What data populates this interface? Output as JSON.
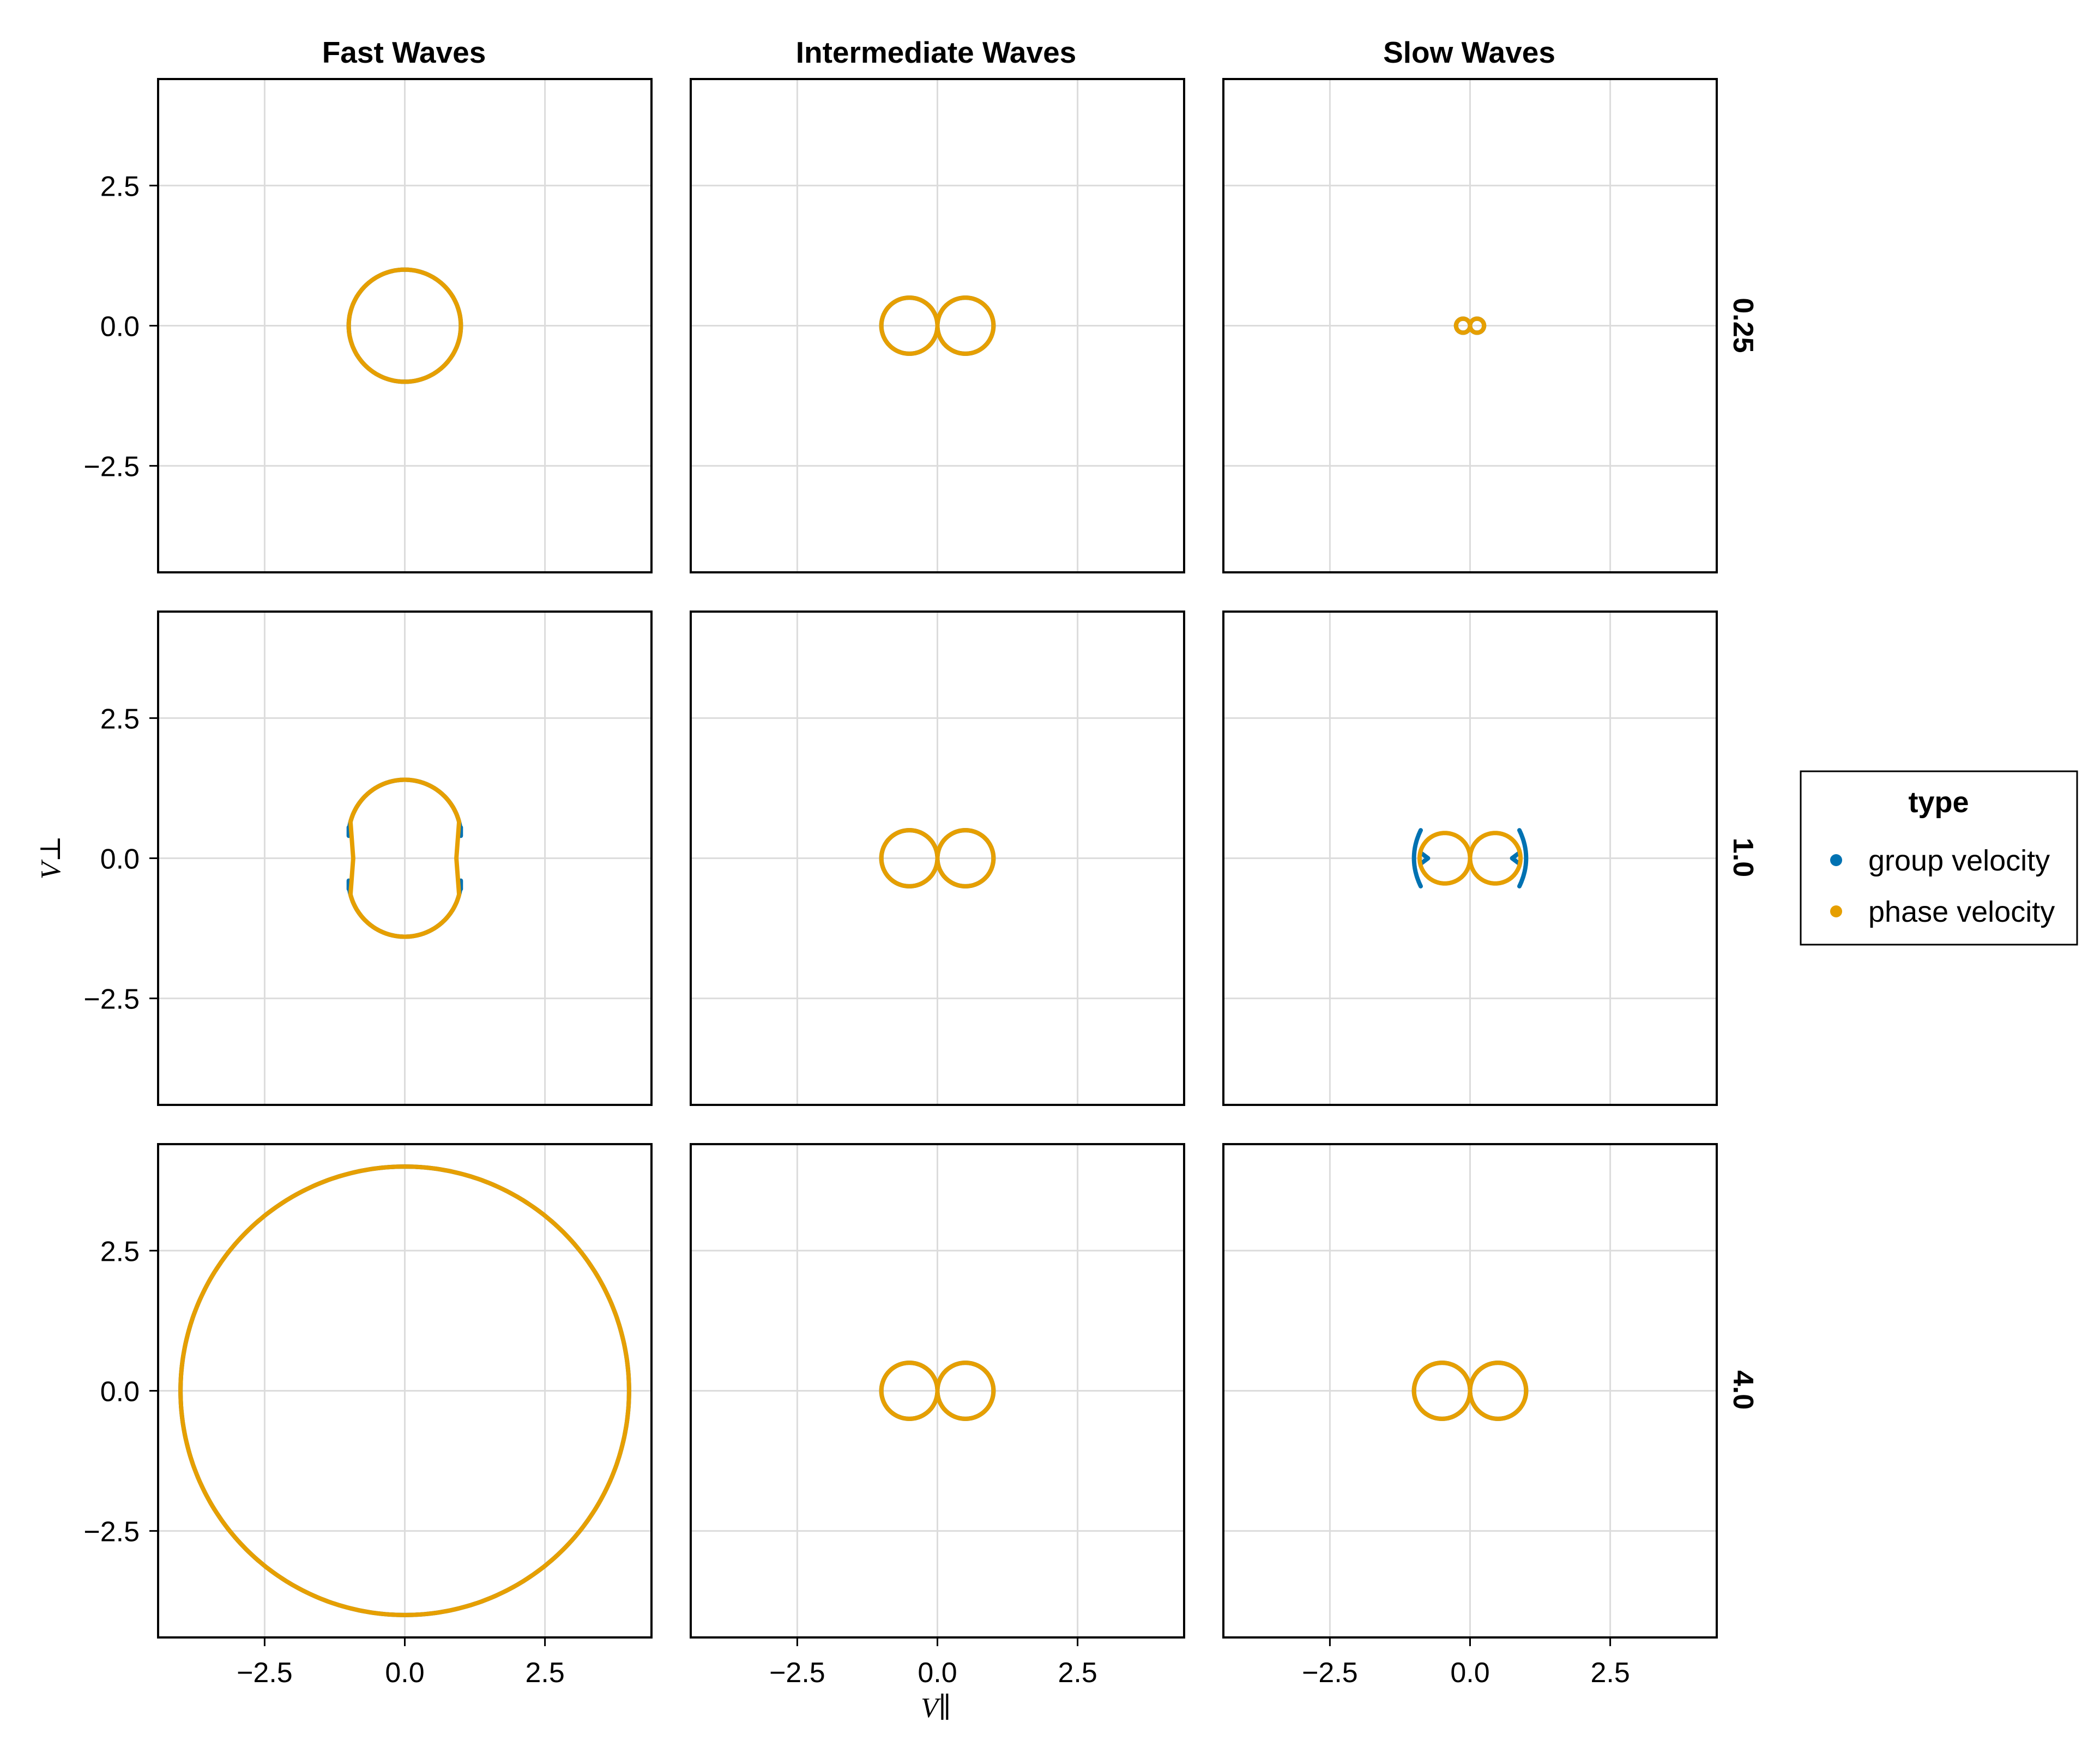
{
  "figure": {
    "column_titles": [
      "Fast Waves",
      "Intermediate Waves",
      "Slow Waves"
    ],
    "row_labels": [
      "0.25",
      "1.0",
      "4.0"
    ],
    "xlabel": "V∥",
    "ylabel": "V⊥"
  },
  "legend": {
    "title": "type",
    "items": [
      {
        "label": "group velocity",
        "color": "#0072b2"
      },
      {
        "label": "phase velocity",
        "color": "#e69f00"
      }
    ]
  },
  "chart_data": {
    "type": "line",
    "layout": "3x3 facet grid (rows = parameter value, columns = wave type)",
    "xlim": [
      -4.4,
      4.4
    ],
    "ylim": [
      -4.4,
      4.4
    ],
    "x_ticks": [
      -2.5,
      0.0,
      2.5
    ],
    "y_ticks": [
      -2.5,
      0.0,
      2.5
    ],
    "x_tick_labels": [
      "−2.5",
      "0.0",
      "2.5"
    ],
    "y_tick_labels": [
      "−2.5",
      "0.0",
      "2.5"
    ],
    "grid": true,
    "legend_position": "right",
    "panels": [
      {
        "row": 0,
        "col": 0,
        "series": [
          {
            "name": "group velocity",
            "shape": "circle",
            "radius": 1.0
          },
          {
            "name": "phase velocity",
            "shape": "circle",
            "radius": 1.0
          }
        ]
      },
      {
        "row": 0,
        "col": 1,
        "series": [
          {
            "name": "group velocity",
            "shape": "figure-eight",
            "cos_amplitude": 1.0
          },
          {
            "name": "phase velocity",
            "shape": "figure-eight",
            "cos_amplitude": 1.0
          }
        ]
      },
      {
        "row": 0,
        "col": 2,
        "series": [
          {
            "name": "group velocity",
            "shape": "figure-eight",
            "cos_amplitude": 0.25
          },
          {
            "name": "phase velocity",
            "shape": "figure-eight",
            "cos_amplitude": 0.25
          }
        ]
      },
      {
        "row": 1,
        "col": 0,
        "series": [
          {
            "name": "group velocity",
            "shape": "two-lobe",
            "cap_x": 1.0,
            "cap_y": 0.55,
            "top": 1.4
          },
          {
            "name": "phase velocity",
            "shape": "two-lobe",
            "top": 1.4,
            "side": 1.0,
            "waist_x": 0.92
          }
        ]
      },
      {
        "row": 1,
        "col": 1,
        "series": [
          {
            "name": "group velocity",
            "shape": "figure-eight",
            "cos_amplitude": 1.0
          },
          {
            "name": "phase velocity",
            "shape": "figure-eight",
            "cos_amplitude": 1.0
          }
        ]
      },
      {
        "row": 1,
        "col": 2,
        "series": [
          {
            "name": "group velocity",
            "shape": "cusps",
            "x_extent": 1.0,
            "y_extent": 0.5,
            "inner_cusp_x": 0.75
          },
          {
            "name": "phase velocity",
            "shape": "figure-eight",
            "cos_amplitude": 0.9
          }
        ]
      },
      {
        "row": 2,
        "col": 0,
        "series": [
          {
            "name": "group velocity",
            "shape": "circle",
            "radius": 4.0
          },
          {
            "name": "phase velocity",
            "shape": "circle",
            "radius": 4.0
          }
        ]
      },
      {
        "row": 2,
        "col": 1,
        "series": [
          {
            "name": "group velocity",
            "shape": "figure-eight",
            "cos_amplitude": 1.0
          },
          {
            "name": "phase velocity",
            "shape": "figure-eight",
            "cos_amplitude": 1.0
          }
        ]
      },
      {
        "row": 2,
        "col": 2,
        "series": [
          {
            "name": "group velocity",
            "shape": "figure-eight",
            "cos_amplitude": 1.0
          },
          {
            "name": "phase velocity",
            "shape": "figure-eight",
            "cos_amplitude": 1.0
          }
        ]
      }
    ]
  }
}
